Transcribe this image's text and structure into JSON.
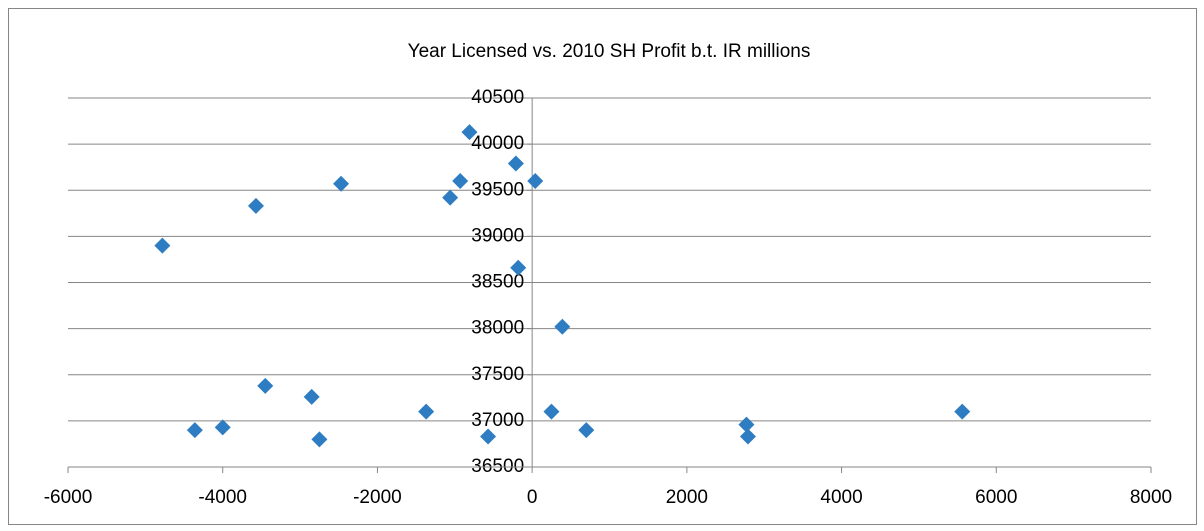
{
  "chart_data": {
    "type": "scatter",
    "title": "Year Licensed vs. 2010 SH Profit b.t. IR millions",
    "x": [
      -4780,
      -3570,
      -2470,
      -1060,
      -930,
      -810,
      -210,
      40,
      -180,
      390,
      -4360,
      -4000,
      -3450,
      -2850,
      -2750,
      -1370,
      -570,
      250,
      700,
      2770,
      2790,
      5560
    ],
    "values": [
      38900,
      39330,
      39570,
      39420,
      39600,
      40130,
      39790,
      39600,
      38660,
      38020,
      36900,
      36930,
      37380,
      37260,
      36800,
      37100,
      36830,
      37100,
      36900,
      36960,
      36830,
      37100
    ],
    "color": "#2e7dc2",
    "xlim": [
      -6000,
      8000
    ],
    "ylim": [
      36500,
      40500
    ],
    "xticks": [
      -6000,
      -4000,
      -2000,
      0,
      2000,
      4000,
      6000,
      8000
    ],
    "yticks": [
      36500,
      37000,
      37500,
      38000,
      38500,
      39000,
      39500,
      40000,
      40500
    ],
    "grid": true
  }
}
